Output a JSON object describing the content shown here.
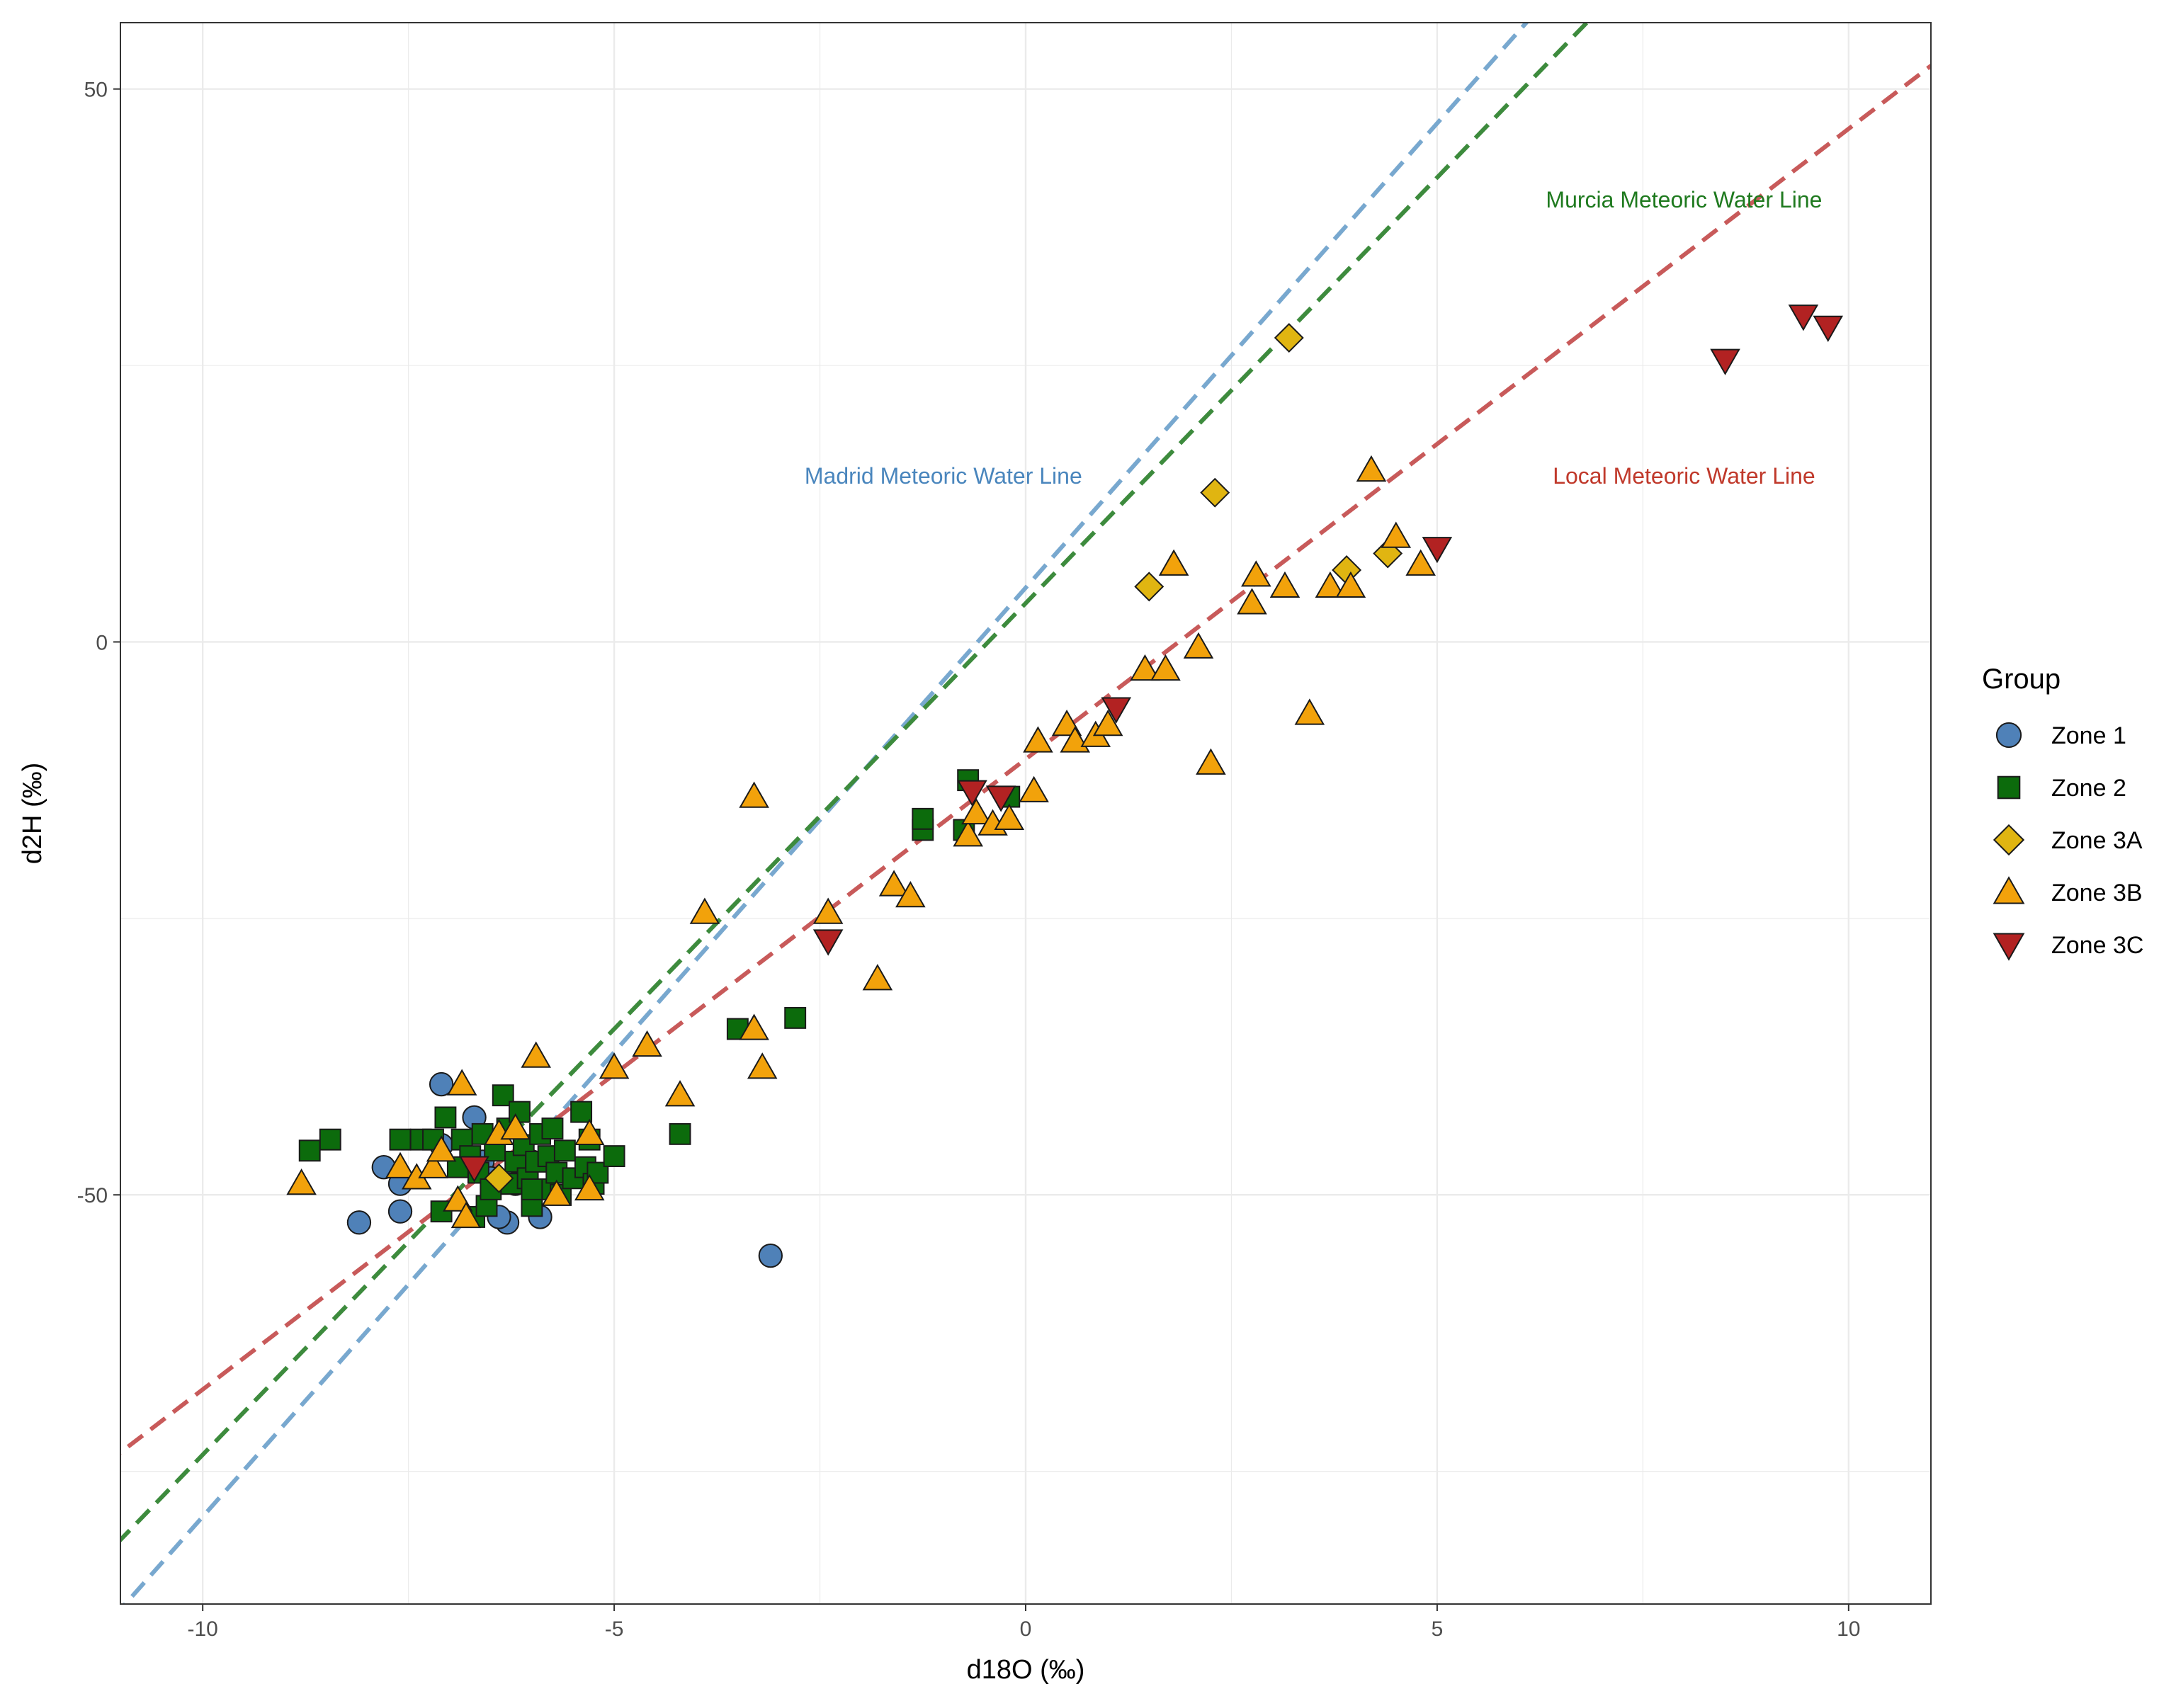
{
  "chart_data": {
    "type": "scatter",
    "xlabel": "d18O (‰)",
    "ylabel": "d2H (‰)",
    "xlim": [
      -11,
      11
    ],
    "ylim": [
      -87,
      56
    ],
    "x_ticks": [
      -10,
      -5,
      0,
      5,
      10
    ],
    "x_tick_labels": [
      "-10",
      "-5",
      "0",
      "5",
      "10"
    ],
    "y_ticks": [
      -50,
      0,
      50
    ],
    "y_tick_labels": [
      "-50",
      "0",
      "50"
    ],
    "grid": true,
    "legend": {
      "title": "Group",
      "position": "right"
    },
    "lines": [
      {
        "name": "Madrid Meteoric Water Line",
        "slope": 8.4,
        "intercept": 4.9,
        "color": "#78a8cf"
      },
      {
        "name": "Murcia Meteoric Water Line",
        "slope": 7.7,
        "intercept": 3.5,
        "color": "#3d8b3d"
      },
      {
        "name": "Local Meteoric Water Line",
        "slope": 5.7,
        "intercept": -10.6,
        "color": "#c85a5a"
      }
    ],
    "annotations": [
      {
        "text": "Madrid Meteoric Water Line",
        "x": -1,
        "y": 15,
        "color": "#4a86bd"
      },
      {
        "text": "Murcia Meteoric Water Line",
        "x": 8,
        "y": 40,
        "color": "#1f7a1f"
      },
      {
        "text": "Local Meteoric Water Line",
        "x": 8,
        "y": 15,
        "color": "#c0392b"
      }
    ],
    "series": [
      {
        "name": "Zone 1",
        "shape": "circle",
        "color": "#4f81b8",
        "points": [
          [
            -8.1,
            -52.5
          ],
          [
            -7.8,
            -47.5
          ],
          [
            -7.6,
            -51.5
          ],
          [
            -7.6,
            -49.0
          ],
          [
            -7.1,
            -40.0
          ],
          [
            -7.1,
            -45.5
          ],
          [
            -6.7,
            -43.0
          ],
          [
            -6.6,
            -47.0
          ],
          [
            -6.5,
            -48.5
          ],
          [
            -6.3,
            -52.5
          ],
          [
            -6.4,
            -52.0
          ],
          [
            -6.2,
            -49.0
          ],
          [
            -5.9,
            -52.0
          ],
          [
            -6.0,
            -47.0
          ],
          [
            -3.1,
            -55.5
          ]
        ]
      },
      {
        "name": "Zone 2",
        "shape": "square",
        "color": "#0c6b0c",
        "points": [
          [
            -8.7,
            -46.0
          ],
          [
            -8.45,
            -45.0
          ],
          [
            -7.6,
            -45.0
          ],
          [
            -7.35,
            -45.0
          ],
          [
            -7.2,
            -45.0
          ],
          [
            -7.05,
            -43.0
          ],
          [
            -7.1,
            -51.5
          ],
          [
            -6.85,
            -45.0
          ],
          [
            -6.75,
            -46.5
          ],
          [
            -6.7,
            -52.0
          ],
          [
            -6.65,
            -48.0
          ],
          [
            -6.55,
            -51.0
          ],
          [
            -6.5,
            -49.5
          ],
          [
            -6.45,
            -46.0
          ],
          [
            -6.35,
            -41.0
          ],
          [
            -6.3,
            -44.0
          ],
          [
            -6.25,
            -49.0
          ],
          [
            -6.2,
            -47.0
          ],
          [
            -6.15,
            -42.5
          ],
          [
            -6.1,
            -45.5
          ],
          [
            -6.05,
            -48.5
          ],
          [
            -6.0,
            -51.0
          ],
          [
            -5.95,
            -47.0
          ],
          [
            -5.9,
            -44.5
          ],
          [
            -5.85,
            -49.5
          ],
          [
            -5.8,
            -46.5
          ],
          [
            -5.75,
            -44.0
          ],
          [
            -5.7,
            -48.0
          ],
          [
            -5.65,
            -50.0
          ],
          [
            -5.6,
            -46.0
          ],
          [
            -5.5,
            -48.5
          ],
          [
            -5.4,
            -42.5
          ],
          [
            -5.35,
            -47.5
          ],
          [
            -5.3,
            -45.0
          ],
          [
            -5.25,
            -49.0
          ],
          [
            -5.2,
            -48.0
          ],
          [
            -5.0,
            -46.5
          ],
          [
            -6.9,
            -47.5
          ],
          [
            -6.6,
            -44.5
          ],
          [
            -6.0,
            -49.5
          ],
          [
            -4.2,
            -44.5
          ],
          [
            -3.5,
            -35.0
          ],
          [
            -2.8,
            -34.0
          ],
          [
            -1.25,
            -17.0
          ],
          [
            -1.25,
            -16.0
          ],
          [
            -0.75,
            -17.0
          ],
          [
            -0.7,
            -12.5
          ],
          [
            -0.2,
            -14.0
          ]
        ]
      },
      {
        "name": "Zone 3A",
        "shape": "diamond",
        "color": "#e0b511",
        "points": [
          [
            -6.4,
            -48.5
          ],
          [
            1.5,
            5.0
          ],
          [
            2.3,
            13.5
          ],
          [
            3.2,
            27.5
          ],
          [
            3.9,
            6.5
          ],
          [
            4.4,
            8.0
          ]
        ]
      },
      {
        "name": "Zone 3B",
        "shape": "triangle-up",
        "color": "#f2a20b",
        "points": [
          [
            -8.8,
            -49.0
          ],
          [
            -7.6,
            -47.5
          ],
          [
            -7.4,
            -48.5
          ],
          [
            -7.2,
            -47.5
          ],
          [
            -7.1,
            -46.0
          ],
          [
            -6.85,
            -40.0
          ],
          [
            -6.9,
            -50.5
          ],
          [
            -6.8,
            -52.0
          ],
          [
            -6.4,
            -44.5
          ],
          [
            -6.2,
            -44.0
          ],
          [
            -5.95,
            -37.5
          ],
          [
            -5.7,
            -50.0
          ],
          [
            -5.3,
            -44.5
          ],
          [
            -5.3,
            -49.5
          ],
          [
            -5.0,
            -38.5
          ],
          [
            -4.6,
            -36.5
          ],
          [
            -4.2,
            -41.0
          ],
          [
            -3.9,
            -24.5
          ],
          [
            -3.3,
            -14.0
          ],
          [
            -3.3,
            -35.0
          ],
          [
            -3.2,
            -38.5
          ],
          [
            -2.4,
            -24.5
          ],
          [
            -1.8,
            -30.5
          ],
          [
            -1.6,
            -22.0
          ],
          [
            -1.4,
            -23.0
          ],
          [
            -0.7,
            -17.5
          ],
          [
            -0.6,
            -15.5
          ],
          [
            -0.4,
            -16.5
          ],
          [
            -0.2,
            -16.0
          ],
          [
            0.1,
            -13.5
          ],
          [
            0.15,
            -9.0
          ],
          [
            0.5,
            -7.5
          ],
          [
            0.6,
            -9.0
          ],
          [
            0.85,
            -8.5
          ],
          [
            1.0,
            -7.5
          ],
          [
            1.45,
            -2.5
          ],
          [
            1.7,
            -2.5
          ],
          [
            1.8,
            7.0
          ],
          [
            2.1,
            -0.5
          ],
          [
            2.25,
            -11.0
          ],
          [
            2.75,
            3.5
          ],
          [
            2.8,
            6.0
          ],
          [
            3.15,
            5.0
          ],
          [
            3.45,
            -6.5
          ],
          [
            3.7,
            5.0
          ],
          [
            3.95,
            5.0
          ],
          [
            4.2,
            15.5
          ],
          [
            4.5,
            9.5
          ],
          [
            4.8,
            7.0
          ]
        ]
      },
      {
        "name": "Zone 3C",
        "shape": "triangle-down",
        "color": "#b22222",
        "points": [
          [
            -6.7,
            -47.5
          ],
          [
            -2.4,
            -27.0
          ],
          [
            -0.65,
            -13.5
          ],
          [
            -0.3,
            -14.0
          ],
          [
            1.1,
            -6.0
          ],
          [
            5.0,
            8.5
          ],
          [
            8.5,
            25.5
          ],
          [
            9.45,
            29.5
          ],
          [
            9.75,
            28.5
          ]
        ]
      }
    ]
  }
}
